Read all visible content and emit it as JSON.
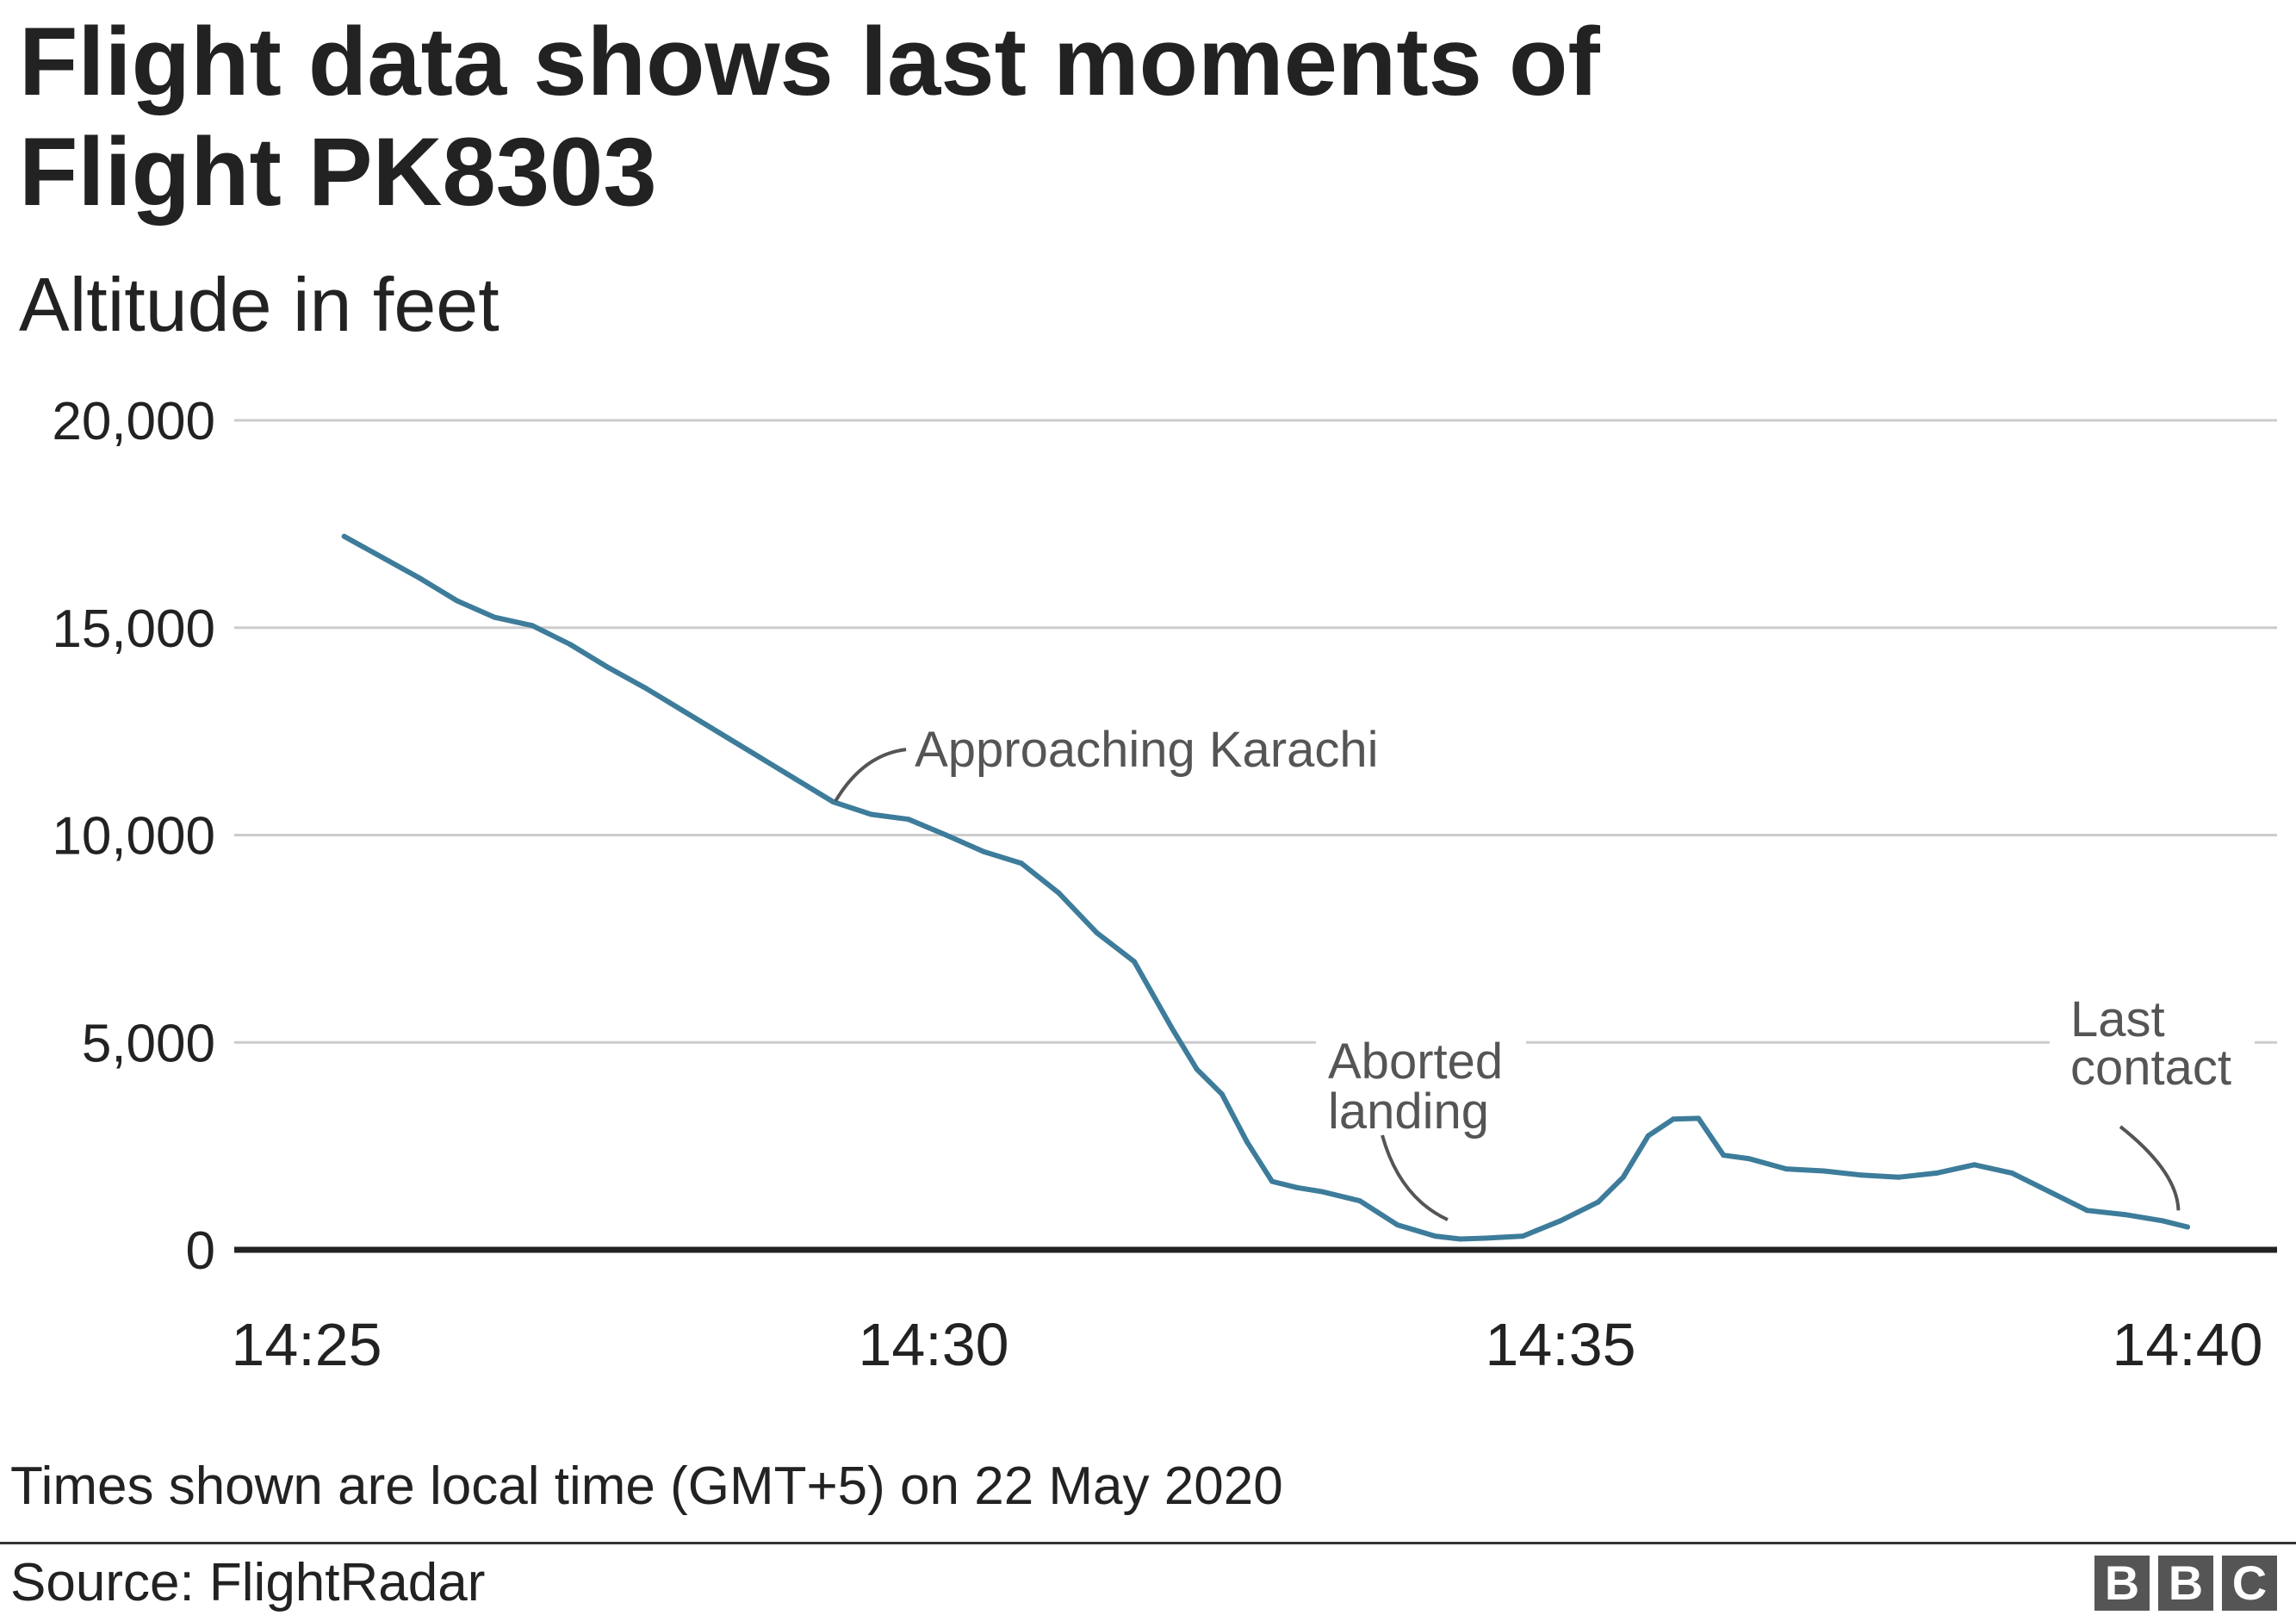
{
  "header": {
    "title": "Flight data shows last moments of Flight PK8303",
    "subtitle": "Altitude in feet"
  },
  "footer": {
    "note": "Times shown are local time (GMT+5) on 22 May 2020",
    "source": "Source: FlightRadar",
    "logo_letters": [
      "B",
      "B",
      "C"
    ]
  },
  "colors": {
    "line": "#3d7c9a",
    "grid": "#cccccc",
    "baseline": "#222222",
    "text": "#222222",
    "annotation": "#555555",
    "logo": "#555555"
  },
  "chart_data": {
    "type": "line",
    "title": "Flight data shows last moments of Flight PK8303",
    "ylabel": "Altitude in feet",
    "xlabel": "",
    "x_ticks": [
      "14:25",
      "14:30",
      "14:35",
      "14:40"
    ],
    "y_ticks": [
      "20,000",
      "15,000",
      "10,000",
      "5,000",
      "0"
    ],
    "ylim": [
      0,
      20000
    ],
    "xlim": [
      "14:25",
      "14:40"
    ],
    "grid": true,
    "series": [
      {
        "x": [
          "14:25:18",
          "14:25:36",
          "14:25:54",
          "14:26:12",
          "14:26:30",
          "14:26:48",
          "14:27:06",
          "14:27:24",
          "14:27:42",
          "14:28:00",
          "14:28:18",
          "14:28:36",
          "14:28:54",
          "14:29:12",
          "14:29:30",
          "14:29:48",
          "14:30:06",
          "14:30:24",
          "14:30:42",
          "14:31:00",
          "14:31:18",
          "14:31:36",
          "14:31:54",
          "14:32:06",
          "14:32:18",
          "14:32:30",
          "14:32:42",
          "14:32:54",
          "14:33:06",
          "14:33:24",
          "14:33:42",
          "14:34:00",
          "14:34:12",
          "14:34:24",
          "14:34:42",
          "14:35:00",
          "14:35:18",
          "14:35:30",
          "14:35:42",
          "14:35:54",
          "14:36:06",
          "14:36:18",
          "14:36:30",
          "14:36:48",
          "14:37:06",
          "14:37:24",
          "14:37:42",
          "14:38:00",
          "14:38:18",
          "14:38:36",
          "14:38:54",
          "14:39:12",
          "14:39:30",
          "14:39:48",
          "14:40:00"
        ],
        "values": [
          17200,
          16700,
          16200,
          15650,
          15250,
          15050,
          14600,
          14050,
          13550,
          13000,
          12450,
          11900,
          11350,
          10800,
          10500,
          10380,
          10000,
          9600,
          9320,
          8600,
          7650,
          6950,
          5350,
          4350,
          3750,
          2600,
          1650,
          1500,
          1400,
          1180,
          600,
          330,
          260,
          280,
          330,
          700,
          1150,
          1750,
          2750,
          3150,
          3170,
          2280,
          2200,
          1950,
          1900,
          1800,
          1750,
          1850,
          2050,
          1850,
          1400,
          950,
          850,
          700,
          550
        ]
      }
    ],
    "annotations": [
      {
        "text": "Approaching Karachi",
        "x": "14:29:18",
        "y": 10900
      },
      {
        "text": "Aborted landing",
        "x": "14:34:06",
        "y": 600
      },
      {
        "text": "Last contact",
        "x": "14:39:54",
        "y": 700
      }
    ]
  }
}
